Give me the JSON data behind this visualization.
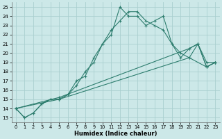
{
  "title": "",
  "xlabel": "Humidex (Indice chaleur)",
  "ylabel": "",
  "bg_color": "#cce8e8",
  "grid_color": "#aacfcf",
  "line_color": "#2d7d6e",
  "xlim": [
    -0.5,
    23.5
  ],
  "ylim": [
    12.5,
    25.5
  ],
  "xticks": [
    0,
    1,
    2,
    3,
    4,
    5,
    6,
    7,
    8,
    9,
    10,
    11,
    12,
    13,
    14,
    15,
    16,
    17,
    18,
    19,
    20,
    21,
    22,
    23
  ],
  "yticks": [
    13,
    14,
    15,
    16,
    17,
    18,
    19,
    20,
    21,
    22,
    23,
    24,
    25
  ],
  "lines": [
    {
      "x": [
        0,
        1,
        2,
        3,
        4,
        5,
        6,
        7,
        8,
        9,
        10,
        11,
        12,
        13,
        14,
        15,
        16,
        17,
        18,
        19,
        20,
        21,
        22,
        23
      ],
      "y": [
        14,
        13,
        13.5,
        14.5,
        15,
        15,
        15.5,
        17,
        17.5,
        19.5,
        21,
        22,
        25,
        24,
        24,
        23,
        23.5,
        24,
        21,
        19.5,
        20.5,
        21,
        18.5,
        19
      ]
    },
    {
      "x": [
        0,
        1,
        2,
        3,
        4,
        5,
        6,
        7,
        8,
        9,
        10,
        11,
        12,
        13,
        14,
        15,
        16,
        17,
        18,
        19,
        20,
        21,
        22,
        23
      ],
      "y": [
        14,
        13,
        13.5,
        14.5,
        15,
        15,
        15.5,
        16.5,
        18,
        19,
        21,
        22.5,
        23.5,
        24.5,
        24.5,
        23.5,
        23,
        22.5,
        21,
        20,
        19.5,
        21,
        19,
        19
      ]
    },
    {
      "x": [
        0,
        5,
        20,
        21,
        22,
        23
      ],
      "y": [
        14,
        15.2,
        20.5,
        21,
        18.5,
        19
      ]
    },
    {
      "x": [
        0,
        5,
        20,
        22,
        23
      ],
      "y": [
        14,
        15,
        19.5,
        18.5,
        19
      ]
    }
  ]
}
